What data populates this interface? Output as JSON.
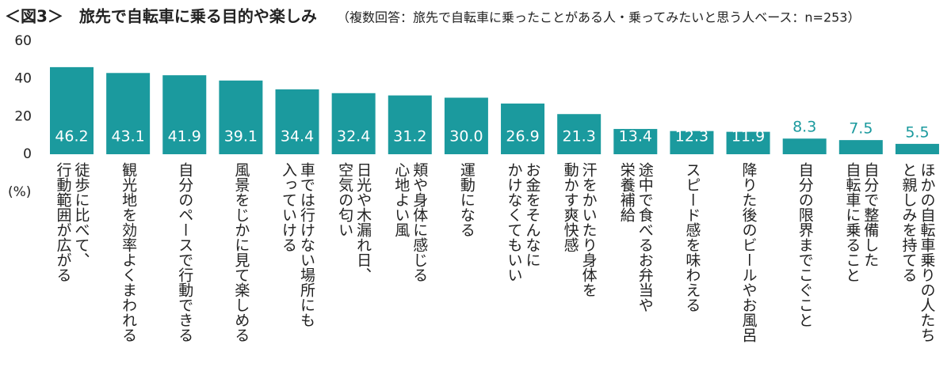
{
  "chart_data": {
    "type": "bar",
    "title": "＜図3＞　旅先で自転車に乗る目的や楽しみ",
    "subtitle": "（複数回答：旅先で自転車に乗ったことがある人・乗ってみたいと思う人ベース：n=253）",
    "y_label": "(%)",
    "categories": [
      "徒歩に比べて、\n行動範囲が広がる",
      "観光地を効率よくまわれる",
      "自分のペースで行動できる",
      "風景をじかに見て楽しめる",
      "車では行けない場所にも\n入っていける",
      "日光や木漏れ日、\n空気の匂い",
      "頬や身体に感じる\n心地よい風",
      "運動になる",
      "お金をそんなに\nかけなくてもいい",
      "汗をかいたり身体を\n動かす爽快感",
      "途中で食べるお弁当や\n栄養補給",
      "スピード感を味わえる",
      "降りた後のビールやお風呂",
      "自分の限界までこぐこと",
      "自分で整備した\n自転車に乗ること",
      "ほかの自転車乗りの人たち\nと親しみを持てる"
    ],
    "values": [
      46.2,
      43.1,
      41.9,
      39.1,
      34.4,
      32.4,
      31.2,
      30.0,
      26.9,
      21.3,
      13.4,
      12.3,
      11.9,
      8.3,
      7.5,
      5.5
    ],
    "value_labels": [
      "46.2",
      "43.1",
      "41.9",
      "39.1",
      "34.4",
      "32.4",
      "31.2",
      "30.0",
      "26.9",
      "21.3",
      "13.4",
      "12.3",
      "11.9",
      "8.3",
      "7.5",
      "5.5"
    ],
    "color": "#1b9a9e",
    "ylim": [
      0,
      60
    ],
    "yticks": [
      0,
      20,
      40,
      60
    ],
    "grid": false
  }
}
